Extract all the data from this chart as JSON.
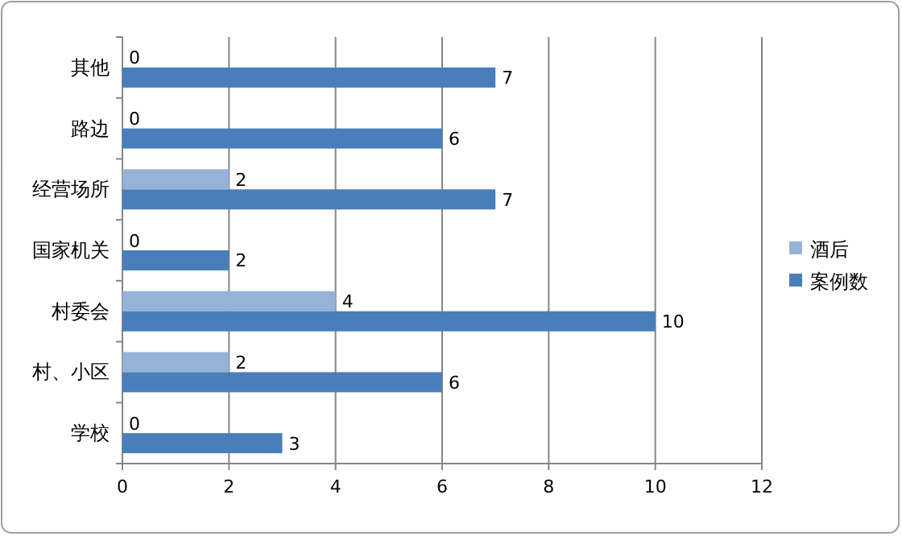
{
  "chart_data": {
    "type": "bar",
    "orientation": "horizontal",
    "categories": [
      "其他",
      "路边",
      "经营场所",
      "国家机关",
      "村委会",
      "村、小区",
      "学校"
    ],
    "series": [
      {
        "name": "酒后",
        "color": "#95b3d7",
        "values": [
          0,
          0,
          2,
          0,
          4,
          2,
          0
        ]
      },
      {
        "name": "案例数",
        "color": "#4a7ebb",
        "values": [
          7,
          6,
          7,
          2,
          10,
          6,
          3
        ]
      }
    ],
    "xlim": [
      0,
      12
    ],
    "xticks": [
      0,
      2,
      4,
      6,
      8,
      10,
      12
    ],
    "grid": "x",
    "legend": "right",
    "data_labels": true
  }
}
